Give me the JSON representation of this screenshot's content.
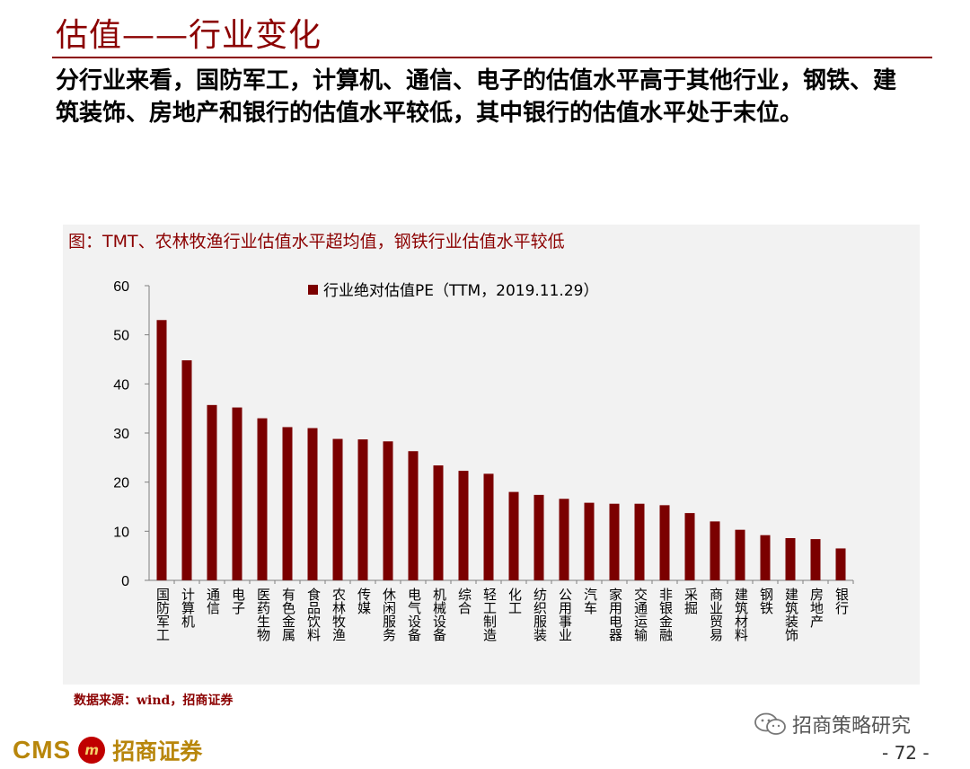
{
  "slide": {
    "title": "估值——行业变化",
    "summary": "分行业来看，国防军工，计算机、通信、电子的估值水平高于其他行业，钢铁、建筑装饰、房地产和银行的估值水平较低，其中银行的估值水平处于末位。",
    "chart_heading": "图：TMT、农林牧渔行业估值水平超均值，钢铁行业估值水平较低",
    "source": "数据来源：wind，招商证券",
    "wechat_account": "招商策略研究",
    "page_number": "- 72 -",
    "logo_text": "CMS",
    "logo_emblem": "m",
    "logo_cn": "招商证券"
  },
  "colors": {
    "accent": "#8b0000",
    "bar": "#7b0000",
    "panel": "#f2f2f2",
    "gold": "#b8860b"
  },
  "chart_data": {
    "type": "bar",
    "title": "",
    "xlabel": "",
    "ylabel": "",
    "legend": "行业绝对估值PE（TTM，2019.11.29）",
    "legend_position": "top",
    "ylim": [
      0,
      60
    ],
    "yticks": [
      0,
      10,
      20,
      30,
      40,
      50,
      60
    ],
    "grid": false,
    "categories": [
      "国防军工",
      "计算机",
      "通信",
      "电子",
      "医药生物",
      "有色金属",
      "食品饮料",
      "农林牧渔",
      "传媒",
      "休闲服务",
      "电气设备",
      "机械设备",
      "综合",
      "轻工制造",
      "化工",
      "纺织服装",
      "公用事业",
      "汽车",
      "家用电器",
      "交通运输",
      "非银金融",
      "采掘",
      "商业贸易",
      "建筑材料",
      "钢铁",
      "建筑装饰",
      "房地产",
      "银行"
    ],
    "series": [
      {
        "name": "行业绝对估值PE（TTM，2019.11.29）",
        "values": [
          53.0,
          44.8,
          35.7,
          35.2,
          33.0,
          31.2,
          31.0,
          28.8,
          28.7,
          28.3,
          26.3,
          23.4,
          22.3,
          21.7,
          18.0,
          17.4,
          16.6,
          15.8,
          15.6,
          15.6,
          15.3,
          13.7,
          12.0,
          10.3,
          9.2,
          8.6,
          8.4,
          6.5
        ]
      }
    ]
  }
}
